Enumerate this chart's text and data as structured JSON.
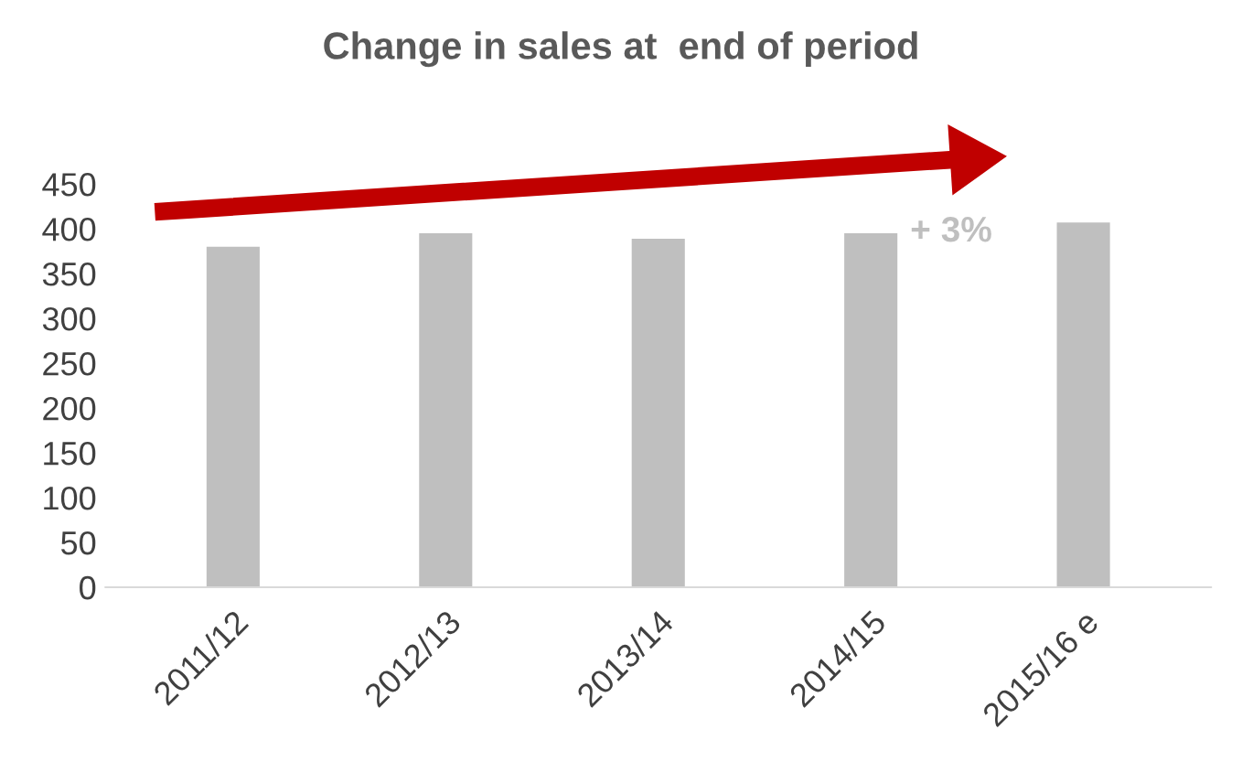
{
  "chart_data": {
    "type": "bar",
    "title": "Change in sales at  end of period",
    "categories": [
      "2011/12",
      "2012/13",
      "2013/14",
      "2014/15",
      "2015/16 e"
    ],
    "values": [
      380,
      395,
      389,
      395,
      407
    ],
    "color": "#bfbfbf",
    "ylim": [
      0,
      450
    ],
    "yticks": [
      0,
      50,
      100,
      150,
      200,
      250,
      300,
      350,
      400,
      450
    ],
    "grid": false,
    "legend": false,
    "annotations": [
      "+ 3%"
    ]
  }
}
